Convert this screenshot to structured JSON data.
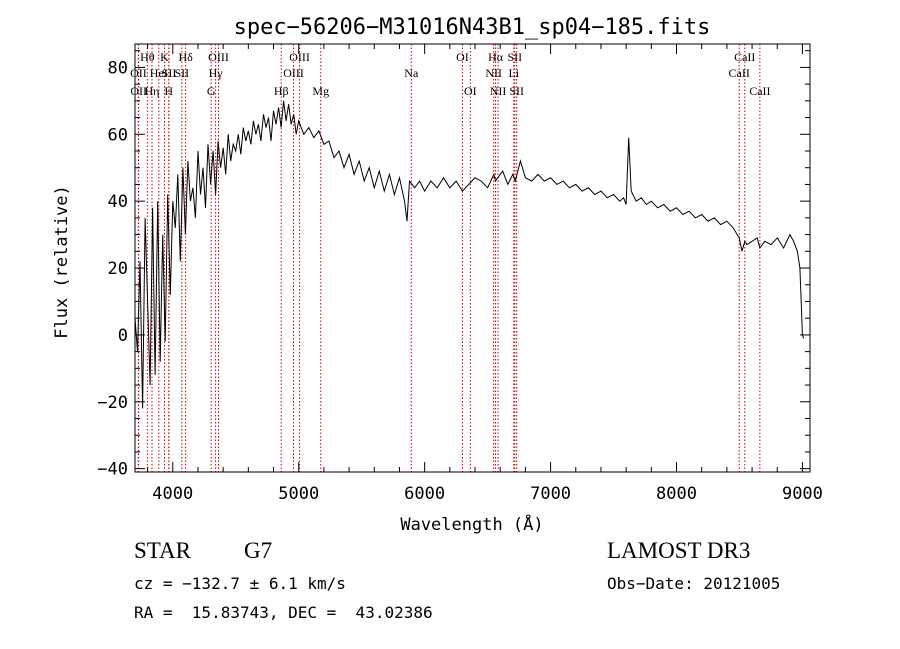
{
  "chart_data": {
    "type": "line",
    "title": "spec−56206−M31016N43B1_sp04−185.fits",
    "xlabel": "Wavelength (Å)",
    "ylabel": "Flux (relative)",
    "xlim": [
      3700,
      9060
    ],
    "ylim": [
      -41,
      87
    ],
    "xticks": [
      4000,
      5000,
      6000,
      7000,
      8000,
      9000
    ],
    "xtick_labels": [
      "4000",
      "5000",
      "6000",
      "7000",
      "8000",
      "9000"
    ],
    "yticks": [
      -40,
      -20,
      0,
      20,
      40,
      60,
      80
    ],
    "ytick_labels": [
      "−40",
      "−20",
      "0",
      "20",
      "40",
      "60",
      "80"
    ],
    "series": [
      {
        "name": "flux",
        "x": [
          3700,
          3720,
          3740,
          3760,
          3780,
          3800,
          3820,
          3840,
          3860,
          3880,
          3900,
          3920,
          3940,
          3960,
          3980,
          4000,
          4020,
          4040,
          4060,
          4080,
          4100,
          4120,
          4140,
          4160,
          4180,
          4200,
          4220,
          4240,
          4260,
          4280,
          4300,
          4320,
          4340,
          4360,
          4380,
          4400,
          4420,
          4440,
          4460,
          4480,
          4500,
          4520,
          4540,
          4560,
          4580,
          4600,
          4620,
          4640,
          4660,
          4680,
          4700,
          4720,
          4740,
          4760,
          4780,
          4800,
          4820,
          4840,
          4860,
          4880,
          4900,
          4920,
          4940,
          4960,
          4980,
          5000,
          5040,
          5080,
          5120,
          5160,
          5200,
          5240,
          5280,
          5320,
          5360,
          5400,
          5440,
          5480,
          5520,
          5560,
          5600,
          5640,
          5680,
          5720,
          5760,
          5800,
          5840,
          5860,
          5880,
          5900,
          5920,
          5960,
          6000,
          6050,
          6100,
          6150,
          6200,
          6250,
          6300,
          6350,
          6400,
          6450,
          6500,
          6550,
          6563,
          6580,
          6620,
          6660,
          6700,
          6720,
          6760,
          6800,
          6850,
          6900,
          6950,
          7000,
          7050,
          7100,
          7150,
          7200,
          7250,
          7300,
          7350,
          7400,
          7450,
          7500,
          7550,
          7580,
          7600,
          7620,
          7640,
          7680,
          7720,
          7760,
          7800,
          7850,
          7900,
          7950,
          8000,
          8050,
          8100,
          8150,
          8200,
          8250,
          8300,
          8350,
          8400,
          8450,
          8498,
          8520,
          8542,
          8560,
          8600,
          8640,
          8662,
          8700,
          8750,
          8800,
          8850,
          8900,
          8930,
          8960,
          8980,
          8990,
          9000,
          9010
        ],
        "y": [
          5,
          -5,
          22,
          -22,
          35,
          10,
          -15,
          38,
          -12,
          40,
          -8,
          30,
          -2,
          42,
          12,
          40,
          32,
          48,
          22,
          50,
          30,
          52,
          40,
          44,
          35,
          55,
          42,
          50,
          38,
          57,
          45,
          55,
          42,
          58,
          50,
          56,
          48,
          60,
          52,
          57,
          55,
          60,
          54,
          62,
          58,
          61,
          57,
          64,
          60,
          63,
          58,
          66,
          62,
          65,
          58,
          67,
          63,
          68,
          62,
          70,
          64,
          69,
          63,
          66,
          60,
          64,
          60,
          62,
          59,
          61,
          57,
          58,
          53,
          55,
          50,
          54,
          48,
          52,
          46,
          50,
          44,
          49,
          43,
          48,
          42,
          47,
          40,
          34,
          46,
          45,
          44,
          46,
          43,
          46,
          44,
          47,
          44,
          46,
          43,
          45,
          47,
          46,
          44,
          48,
          46,
          47,
          49,
          45,
          48,
          46,
          52,
          47,
          46,
          48,
          46,
          47,
          45,
          46,
          44,
          45,
          43,
          44,
          42,
          43,
          41,
          42,
          40,
          41,
          39,
          59,
          43,
          40,
          41,
          39,
          40,
          38,
          39,
          37,
          38,
          36,
          37,
          35,
          36,
          34,
          35,
          33,
          34,
          32,
          29,
          25,
          28,
          27,
          28,
          29,
          26,
          28,
          27,
          29,
          26,
          30,
          28,
          25,
          20,
          10,
          0,
          -1
        ]
      }
    ],
    "line_markers": [
      {
        "label": "Hθ",
        "x": 3798,
        "row": 1
      },
      {
        "label": "OII",
        "x": 3727,
        "row": 2
      },
      {
        "label": "OII",
        "x": 3729,
        "row": 3
      },
      {
        "label": "Hη",
        "x": 3835,
        "row": 3
      },
      {
        "label": "HeI",
        "x": 3889,
        "row": 2
      },
      {
        "label": "K",
        "x": 3934,
        "row": 1
      },
      {
        "label": "SII",
        "x": 3970,
        "row": 2
      },
      {
        "label": "H",
        "x": 3968,
        "row": 3
      },
      {
        "label": "SII",
        "x": 4072,
        "row": 2
      },
      {
        "label": "Hδ",
        "x": 4102,
        "row": 1
      },
      {
        "label": "OIII",
        "x": 4363,
        "row": 1
      },
      {
        "label": "Hγ",
        "x": 4340,
        "row": 2
      },
      {
        "label": "G",
        "x": 4305,
        "row": 3
      },
      {
        "label": "Hβ",
        "x": 4861,
        "row": 3
      },
      {
        "label": "OIII",
        "x": 5007,
        "row": 1
      },
      {
        "label": "OIII",
        "x": 4959,
        "row": 2
      },
      {
        "label": "Mg",
        "x": 5175,
        "row": 3
      },
      {
        "label": "Na",
        "x": 5894,
        "row": 2
      },
      {
        "label": "OI",
        "x": 6300,
        "row": 1
      },
      {
        "label": "OI",
        "x": 6363,
        "row": 3
      },
      {
        "label": "Hα",
        "x": 6563,
        "row": 1
      },
      {
        "label": "NII",
        "x": 6548,
        "row": 2
      },
      {
        "label": "NII",
        "x": 6583,
        "row": 3
      },
      {
        "label": "SII",
        "x": 6716,
        "row": 1
      },
      {
        "label": "Li",
        "x": 6708,
        "row": 2
      },
      {
        "label": "SII",
        "x": 6731,
        "row": 3
      },
      {
        "label": "CaII",
        "x": 8542,
        "row": 1
      },
      {
        "label": "CaII",
        "x": 8498,
        "row": 2
      },
      {
        "label": "CaII",
        "x": 8662,
        "row": 3
      }
    ]
  },
  "info": {
    "object_class": "STAR",
    "subclass": "G7",
    "survey": "LAMOST DR3",
    "cz": "cz = −132.7 ± 6.1 km/s",
    "obs_date": "Obs−Date: 20121005",
    "coords": "RA =  15.83743, DEC =  43.02386"
  },
  "colors": {
    "marker_line": "#cc0000",
    "spectrum": "#000000",
    "axis": "#000000"
  }
}
